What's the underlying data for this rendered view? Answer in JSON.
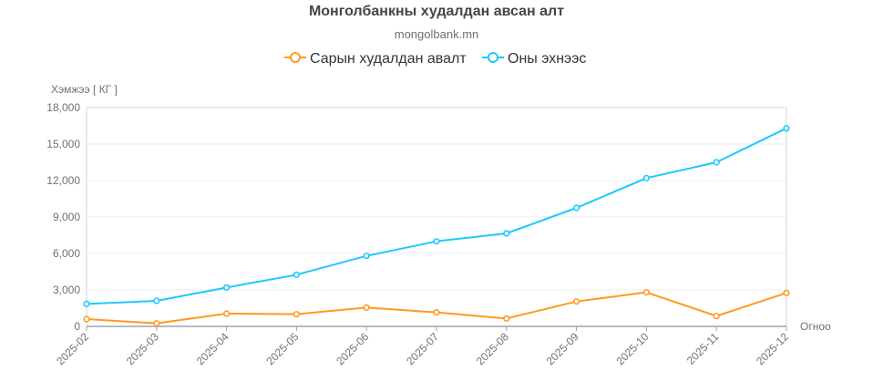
{
  "chart_data": {
    "type": "line",
    "title": "Монголбанкны худалдан авсан алт",
    "subtitle": "mongolbank.mn",
    "xlabel": "Огноо",
    "ylabel": "Хэмжээ [ КГ ]",
    "categories": [
      "2025-02",
      "2025-03",
      "2025-04",
      "2025-05",
      "2025-06",
      "2025-07",
      "2025-08",
      "2025-09",
      "2025-10",
      "2025-11",
      "2025-12"
    ],
    "ylim": [
      0,
      18000
    ],
    "yticks": [
      0,
      3000,
      6000,
      9000,
      12000,
      15000,
      18000
    ],
    "ytick_labels": [
      "0",
      "3,000",
      "6,000",
      "9,000",
      "12,000",
      "15,000",
      "18,000"
    ],
    "grid": true,
    "legend_position": "top-center",
    "series": [
      {
        "name": "Сарын худалдан авалт",
        "color": "#ff9a1f",
        "values": [
          600,
          250,
          1050,
          1000,
          1550,
          1150,
          650,
          2050,
          2800,
          850,
          2750
        ]
      },
      {
        "name": "Оны эхнээс",
        "color": "#1ec8ff",
        "values": [
          1850,
          2100,
          3200,
          4250,
          5800,
          7000,
          7650,
          9750,
          12200,
          13500,
          16300
        ]
      }
    ]
  }
}
